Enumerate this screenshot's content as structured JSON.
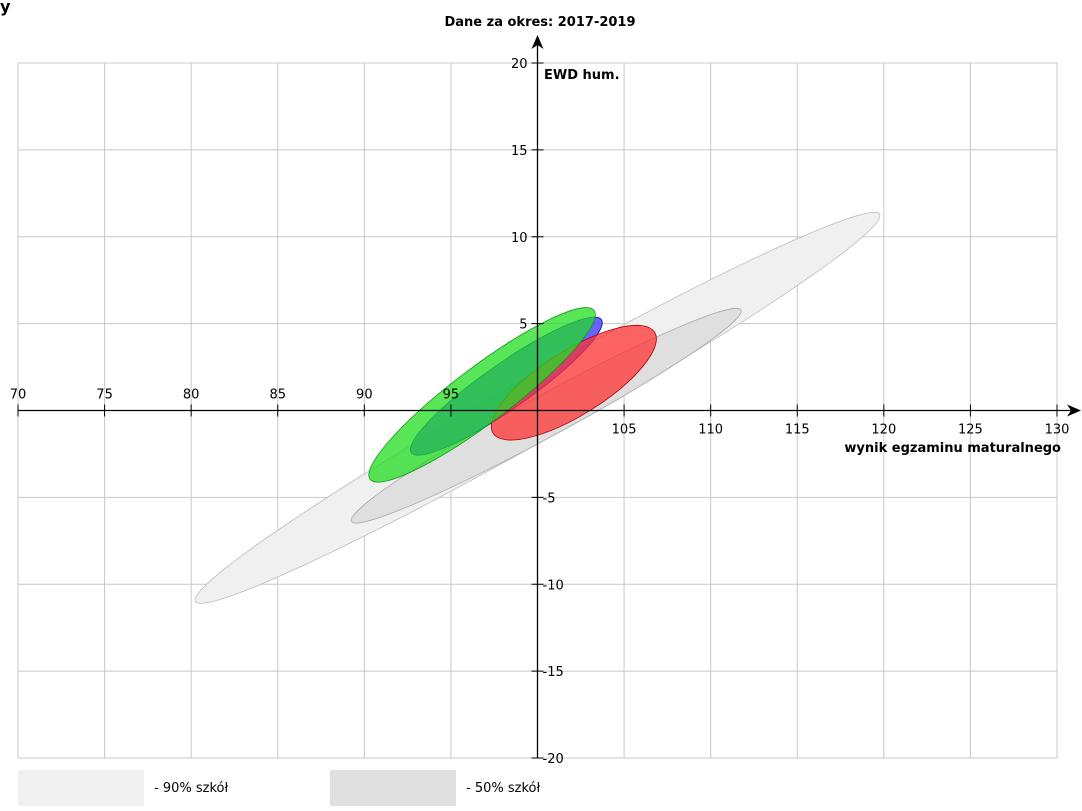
{
  "corner_text": "y",
  "chart_data": {
    "type": "scatter",
    "title": "Dane za okres: 2017-2019",
    "xlabel": "wynik egzaminu maturalnego",
    "ylabel": "EWD hum.",
    "xlim": [
      70,
      130
    ],
    "ylim": [
      -20,
      20
    ],
    "x_ticks": [
      70,
      75,
      80,
      85,
      90,
      95,
      105,
      110,
      115,
      120,
      125,
      130
    ],
    "y_ticks": [
      20,
      15,
      10,
      5,
      -5,
      -10,
      -15,
      -20
    ],
    "grid": true,
    "ellipses": [
      {
        "name": "90% szkół",
        "cx": 100,
        "cy": 0.15,
        "rx": 22.7,
        "ry": 1.8,
        "angle_deg": 29.5,
        "color": "#f0f0f0",
        "stroke": "#bbbbbb",
        "opacity": 1
      },
      {
        "name": "50% szkół",
        "cx": 100.5,
        "cy": -0.3,
        "rx": 12.8,
        "ry": 1.2,
        "angle_deg": 28.5,
        "color": "#dcdcdc",
        "stroke": "#aaaaaa",
        "opacity": 0.85
      },
      {
        "name": "",
        "cx": 98.2,
        "cy": 1.4,
        "rx": 6.7,
        "ry": 1.3,
        "angle_deg": 35,
        "color": "#3333ff",
        "stroke": "#0000aa",
        "opacity": 0.75
      },
      {
        "name": "",
        "cx": 102.1,
        "cy": 1.6,
        "rx": 5.5,
        "ry": 1.85,
        "angle_deg": 32,
        "color": "#ff3333",
        "stroke": "#aa0000",
        "opacity": 0.75
      },
      {
        "name": "",
        "cx": 96.8,
        "cy": 0.9,
        "rx": 8.1,
        "ry": 1.6,
        "angle_deg": 37,
        "color": "#22dd22",
        "stroke": "#119911",
        "opacity": 0.75
      }
    ],
    "legend": [
      {
        "label": "- 90% szkół",
        "color": "#f0f0f0"
      },
      {
        "label": "- 50% szkół",
        "color": "#e0e0e0"
      }
    ]
  }
}
